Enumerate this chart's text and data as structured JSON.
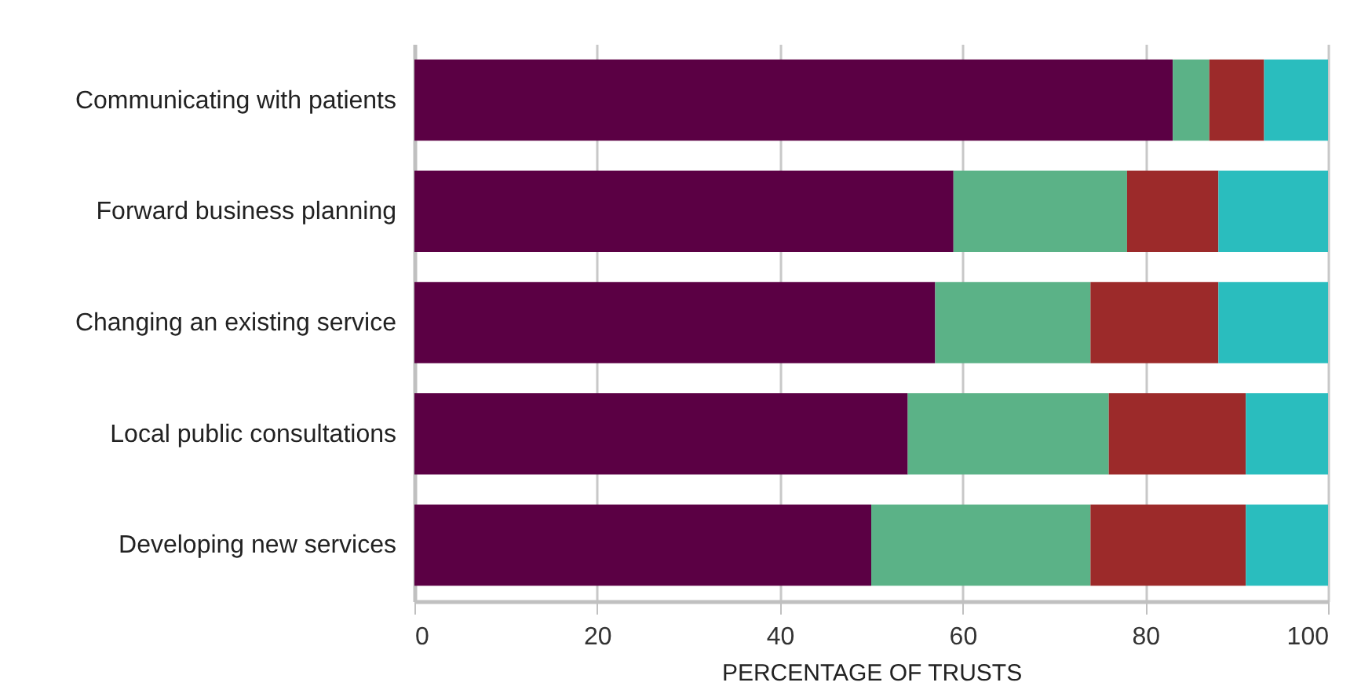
{
  "chart_data": {
    "type": "bar",
    "orientation": "horizontal",
    "stacked": true,
    "xlabel": "PERCENTAGE OF TRUSTS",
    "categories": [
      "Communicating with patients",
      "Forward business planning",
      "Changing an existing service",
      "Local public consultations",
      "Developing new services"
    ],
    "series": [
      {
        "color": "#5b0044",
        "values": [
          83,
          59,
          57,
          54,
          50
        ]
      },
      {
        "color": "#5bb287",
        "values": [
          4,
          19,
          17,
          22,
          24
        ]
      },
      {
        "color": "#9c2a2a",
        "values": [
          6,
          10,
          14,
          15,
          17
        ]
      },
      {
        "color": "#2abdbe",
        "values": [
          7,
          12,
          12,
          9,
          9
        ]
      }
    ],
    "xlim": [
      0,
      100
    ],
    "xticks": [
      0,
      20,
      40,
      60,
      80,
      100
    ],
    "grid": "x",
    "legend": false
  }
}
